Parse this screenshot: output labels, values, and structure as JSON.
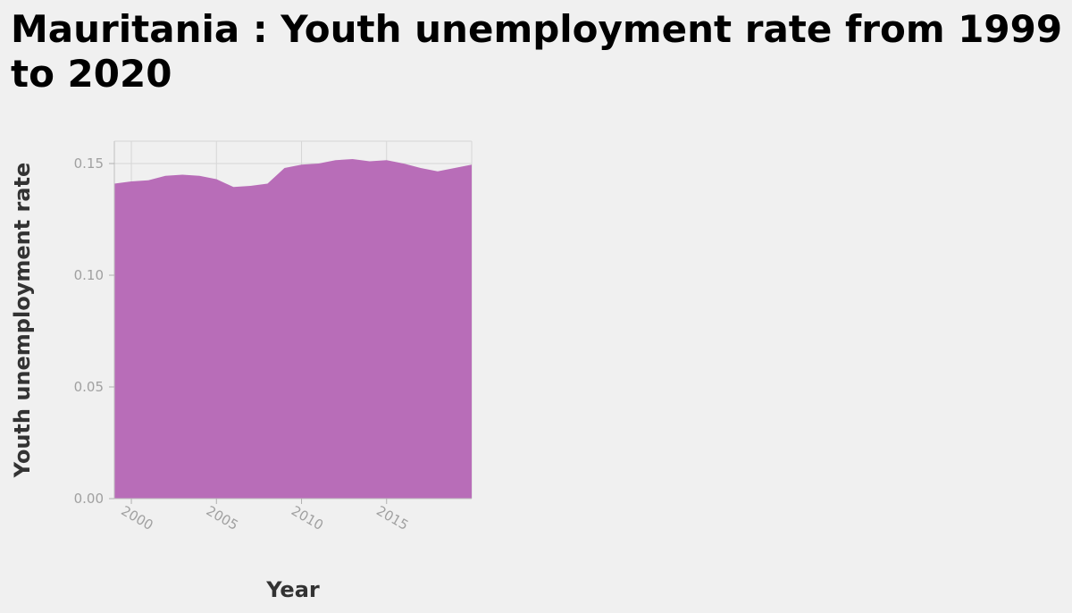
{
  "chart_data": {
    "type": "area",
    "title": "Mauritania : Youth unemployment rate from 1999 to 2020",
    "xlabel": "Year",
    "ylabel": "Youth unemployment rate",
    "xlim": [
      1999,
      2020
    ],
    "ylim": [
      0,
      0.16
    ],
    "x_ticks": [
      2000,
      2005,
      2010,
      2015
    ],
    "y_ticks": [
      0.0,
      0.05,
      0.1,
      0.15
    ],
    "y_tick_labels": [
      "0.00",
      "0.05",
      "0.10",
      "0.15"
    ],
    "grid": true,
    "legend": "none",
    "color": "#b86db8",
    "series": [
      {
        "x": [
          1999,
          2000,
          2001,
          2002,
          2003,
          2004,
          2005,
          2006,
          2007,
          2008,
          2009,
          2010,
          2011,
          2012,
          2013,
          2014,
          2015,
          2016,
          2017,
          2018,
          2019,
          2020
        ],
        "values": [
          0.141,
          0.142,
          0.1425,
          0.1445,
          0.145,
          0.1445,
          0.143,
          0.1395,
          0.14,
          0.141,
          0.148,
          0.1495,
          0.15,
          0.1515,
          0.152,
          0.151,
          0.1515,
          0.15,
          0.148,
          0.1465,
          0.148,
          0.1495
        ]
      }
    ]
  }
}
